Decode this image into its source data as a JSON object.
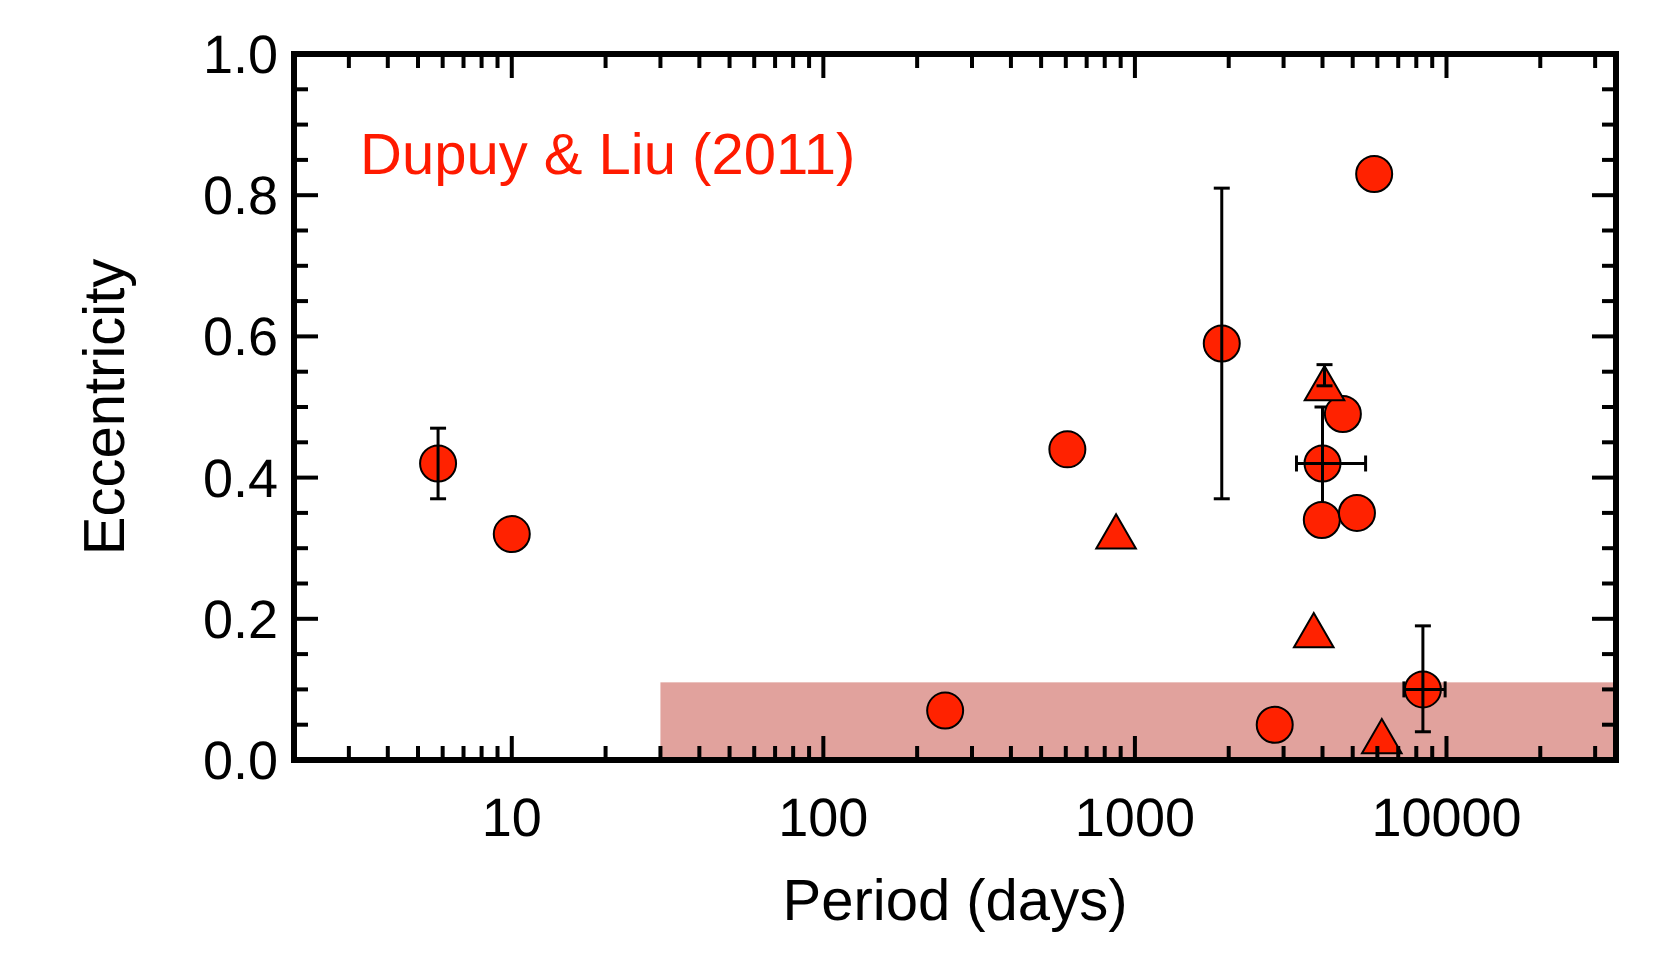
{
  "chart_data": {
    "type": "scatter",
    "xlabel": "Period (days)",
    "ylabel": "Eccentricity",
    "log": "x",
    "annotations": [
      "Dupuy & Liu (2011)"
    ],
    "xlim": [
      2,
      35000
    ],
    "ylim": [
      0,
      1
    ],
    "xticks": [
      {
        "value": 2,
        "label": null
      },
      {
        "value": 3,
        "label": null
      },
      {
        "value": 4,
        "label": null
      },
      {
        "value": 5,
        "label": null
      },
      {
        "value": 6,
        "label": null
      },
      {
        "value": 7,
        "label": null
      },
      {
        "value": 8,
        "label": null
      },
      {
        "value": 9,
        "label": null
      },
      10,
      {
        "value": 20,
        "label": null
      },
      {
        "value": 30,
        "label": null
      },
      {
        "value": 40,
        "label": null
      },
      {
        "value": 50,
        "label": null
      },
      {
        "value": 60,
        "label": null
      },
      {
        "value": 70,
        "label": null
      },
      {
        "value": 80,
        "label": null
      },
      {
        "value": 90,
        "label": null
      },
      100,
      {
        "value": 200,
        "label": null
      },
      {
        "value": 300,
        "label": null
      },
      {
        "value": 400,
        "label": null
      },
      {
        "value": 500,
        "label": null
      },
      {
        "value": 600,
        "label": null
      },
      {
        "value": 700,
        "label": null
      },
      {
        "value": 800,
        "label": null
      },
      {
        "value": 900,
        "label": null
      },
      1000,
      {
        "value": 2000,
        "label": null
      },
      {
        "value": 3000,
        "label": null
      },
      {
        "value": 4000,
        "label": null
      },
      {
        "value": 5000,
        "label": null
      },
      {
        "value": 6000,
        "label": null
      },
      {
        "value": 7000,
        "label": null
      },
      {
        "value": 8000,
        "label": null
      },
      {
        "value": 9000,
        "label": null
      },
      10000,
      {
        "value": 20000,
        "label": null
      },
      {
        "value": 30000,
        "label": null
      }
    ],
    "yticks": [
      {
        "value": 0,
        "label": "0.0"
      },
      {
        "value": 0.05,
        "label": null
      },
      {
        "value": 0.1,
        "label": null
      },
      {
        "value": 0.15,
        "label": null
      },
      {
        "value": 0.2,
        "label": "0.2"
      },
      {
        "value": 0.25,
        "label": null
      },
      {
        "value": 0.3,
        "label": null
      },
      {
        "value": 0.35,
        "label": null
      },
      {
        "value": 0.4,
        "label": "0.4"
      },
      {
        "value": 0.45,
        "label": null
      },
      {
        "value": 0.5,
        "label": null
      },
      {
        "value": 0.55,
        "label": null
      },
      {
        "value": 0.6,
        "label": "0.6"
      },
      {
        "value": 0.65,
        "label": null
      },
      {
        "value": 0.7,
        "label": null
      },
      {
        "value": 0.75,
        "label": null
      },
      {
        "value": 0.8,
        "label": "0.8"
      },
      {
        "value": 0.85,
        "label": null
      },
      {
        "value": 0.9,
        "label": null
      },
      {
        "value": 0.95,
        "label": null
      },
      {
        "value": 1,
        "label": "1.0"
      }
    ],
    "bands": [
      {
        "axis": "x",
        "from": 30,
        "to": 35000,
        "color": "#d47a74"
      }
    ],
    "series": [
      {
        "marker": "circle",
        "color": "#ff2200",
        "x": [
          5.8,
          10,
          246,
          607,
          1900,
          2810,
          4000,
          3980,
          4650,
          5160,
          5860,
          8400
        ],
        "values": [
          0.42,
          0.32,
          0.07,
          0.44,
          0.59,
          0.05,
          0.42,
          0.34,
          0.49,
          0.35,
          0.83,
          0.1
        ],
        "errors": [
          [
            0.37,
            0.47
          ],
          null,
          null,
          null,
          [
            0.37,
            0.81
          ],
          null,
          [
            0.36,
            0.5
          ],
          null,
          null,
          null,
          null,
          [
            0.04,
            0.19
          ]
        ],
        "xerrors": [
          null,
          null,
          null,
          null,
          null,
          null,
          [
            3300,
            5500
          ],
          null,
          null,
          null,
          null,
          [
            7300,
            9900
          ]
        ]
      },
      {
        "marker": "triangle",
        "color": "#ff2200",
        "x": [
          870,
          3750,
          4060,
          6200
        ],
        "values": [
          0.32,
          0.18,
          0.53,
          0.03
        ],
        "errors": [
          null,
          null,
          [
            0.53,
            0.56
          ],
          null
        ]
      }
    ]
  }
}
